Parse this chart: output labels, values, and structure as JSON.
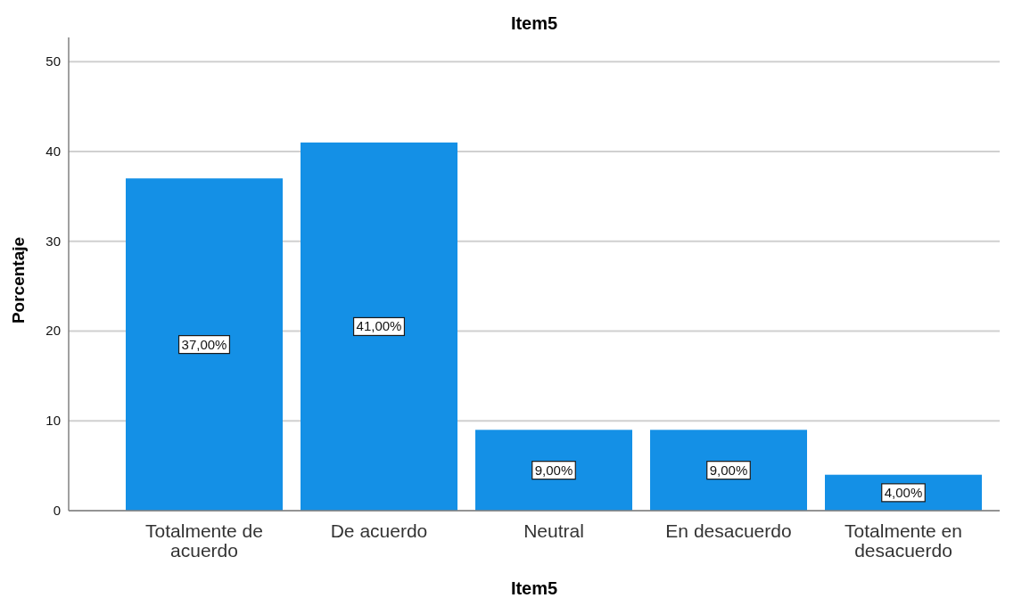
{
  "chart_data": {
    "type": "bar",
    "title": "Item5",
    "xlabel": "Item5",
    "ylabel": "Porcentaje",
    "categories": [
      "Totalmente de acuerdo",
      "De acuerdo",
      "Neutral",
      "En desacuerdo",
      "Totalmente en desacuerdo"
    ],
    "values": [
      37,
      41,
      9,
      9,
      4
    ],
    "value_labels": [
      "37,00%",
      "41,00%",
      "9,00%",
      "9,00%",
      "4,00%"
    ],
    "color": "#1490e6",
    "ylim": [
      0,
      52.7
    ],
    "yticks": [
      0,
      10,
      20,
      30,
      40,
      50
    ],
    "grid": "y"
  }
}
